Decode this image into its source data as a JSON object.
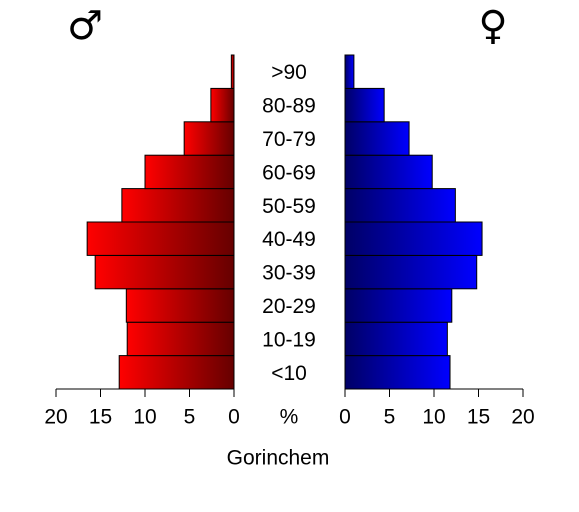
{
  "chart_data": {
    "type": "pyramid",
    "title": "Gorinchem",
    "axis_label": "%",
    "categories": [
      "<10",
      "10-19",
      "20-29",
      "30-39",
      "40-49",
      "50-59",
      "60-69",
      "70-79",
      "80-89",
      ">90"
    ],
    "series": [
      {
        "name": "♂",
        "color": "#ff0000",
        "values": [
          12.9,
          12.0,
          12.1,
          15.6,
          16.5,
          12.6,
          10.0,
          5.6,
          2.6,
          0.3
        ]
      },
      {
        "name": "♀",
        "color": "#0000ff",
        "values": [
          11.8,
          11.5,
          12.0,
          14.8,
          15.4,
          12.4,
          9.8,
          7.2,
          4.4,
          1.0
        ]
      }
    ],
    "xlim": [
      0,
      20
    ],
    "xticks": [
      0,
      5,
      10,
      15,
      20
    ]
  }
}
